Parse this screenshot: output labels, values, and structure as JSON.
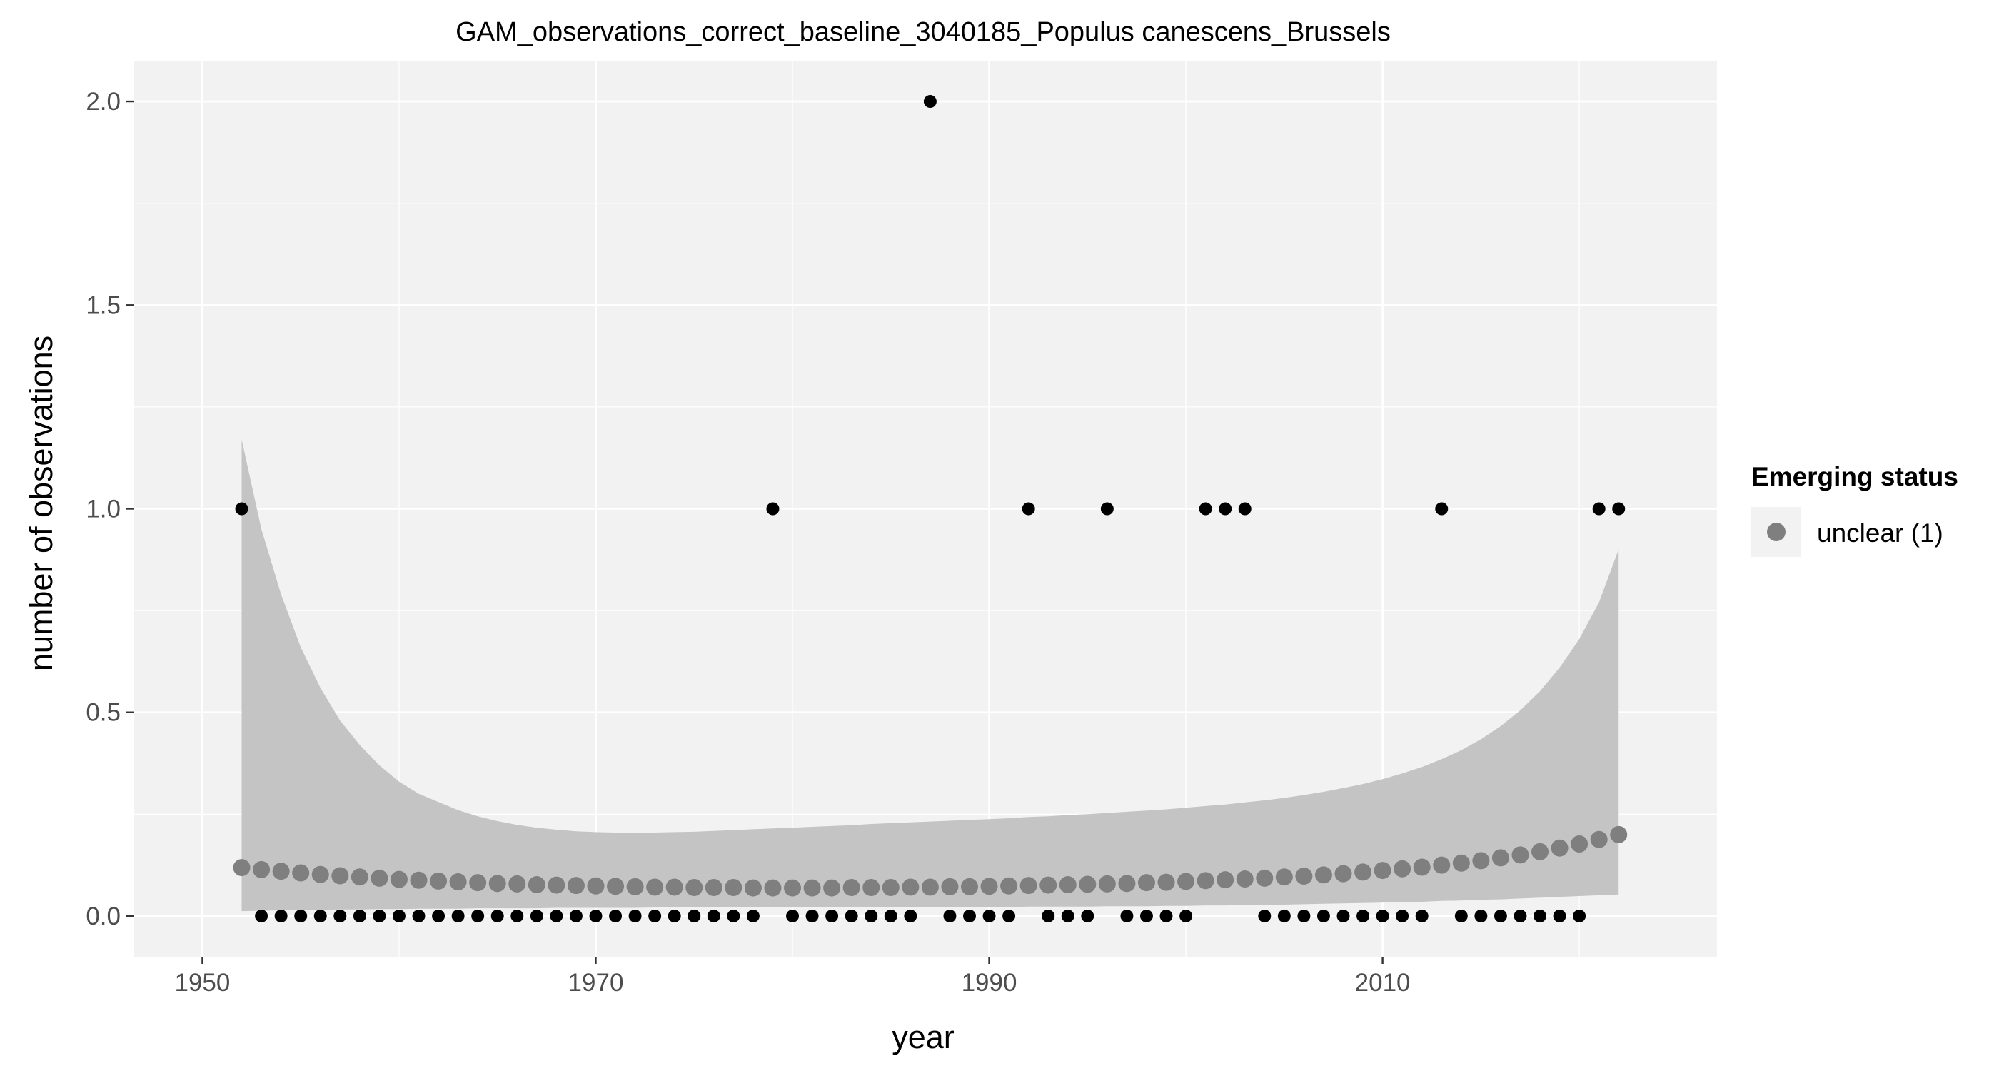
{
  "chart_data": {
    "type": "scatter",
    "title": "GAM_observations_correct_baseline_3040185_Populus canescens_Brussels",
    "xlabel": "year",
    "ylabel": "number of observations",
    "xlim": [
      1946.5,
      2027
    ],
    "ylim": [
      -0.1,
      2.1
    ],
    "x_ticks": [
      1950,
      1970,
      1990,
      2010
    ],
    "x_tick_labels": [
      "1950",
      "1970",
      "1990",
      "2010"
    ],
    "y_ticks": [
      0,
      0.5,
      1,
      1.5,
      2
    ],
    "y_tick_labels": [
      "0.0",
      "0.5",
      "1.0",
      "1.5",
      "2.0"
    ],
    "grid": true,
    "legend": {
      "title": "Emerging status",
      "placement": "right",
      "items": [
        {
          "label": "unclear (1)",
          "color": "#7f7f7f"
        }
      ]
    },
    "colors": {
      "panel": "#f2f2f2",
      "grid_major": "#ffffff",
      "grid_minor": "#ffffff",
      "ribbon": "#c4c4c4",
      "fitted": "#7f7f7f",
      "observed": "#000000"
    },
    "series": [
      {
        "kind": "observed",
        "x": [
          1952,
          1953,
          1954,
          1955,
          1956,
          1957,
          1958,
          1959,
          1960,
          1961,
          1962,
          1963,
          1964,
          1965,
          1966,
          1967,
          1968,
          1969,
          1970,
          1971,
          1972,
          1973,
          1974,
          1975,
          1976,
          1977,
          1978,
          1979,
          1980,
          1981,
          1982,
          1983,
          1984,
          1985,
          1986,
          1987,
          1988,
          1989,
          1990,
          1991,
          1992,
          1993,
          1994,
          1995,
          1996,
          1997,
          1998,
          1999,
          2000,
          2001,
          2002,
          2003,
          2004,
          2005,
          2006,
          2007,
          2008,
          2009,
          2010,
          2011,
          2012,
          2013,
          2014,
          2015,
          2016,
          2017,
          2018,
          2019,
          2020,
          2021,
          2022
        ],
        "y": [
          1,
          0,
          0,
          0,
          0,
          0,
          0,
          0,
          0,
          0,
          0,
          0,
          0,
          0,
          0,
          0,
          0,
          0,
          0,
          0,
          0,
          0,
          0,
          0,
          0,
          0,
          0,
          1,
          0,
          0,
          0,
          0,
          0,
          0,
          0,
          2,
          0,
          0,
          0,
          0,
          1,
          0,
          0,
          0,
          1,
          0,
          0,
          0,
          0,
          1,
          1,
          1,
          0,
          0,
          0,
          0,
          0,
          0,
          0,
          0,
          0,
          1,
          0,
          0,
          0,
          0,
          0,
          0,
          0,
          1,
          1
        ]
      },
      {
        "kind": "fitted",
        "name": "unclear (1)",
        "x": [
          1952,
          1953,
          1954,
          1955,
          1956,
          1957,
          1958,
          1959,
          1960,
          1961,
          1962,
          1963,
          1964,
          1965,
          1966,
          1967,
          1968,
          1969,
          1970,
          1971,
          1972,
          1973,
          1974,
          1975,
          1976,
          1977,
          1978,
          1979,
          1980,
          1981,
          1982,
          1983,
          1984,
          1985,
          1986,
          1987,
          1988,
          1989,
          1990,
          1991,
          1992,
          1993,
          1994,
          1995,
          1996,
          1997,
          1998,
          1999,
          2000,
          2001,
          2002,
          2003,
          2004,
          2005,
          2006,
          2007,
          2008,
          2009,
          2010,
          2011,
          2012,
          2013,
          2014,
          2015,
          2016,
          2017,
          2018,
          2019,
          2020,
          2021,
          2022
        ],
        "y": [
          0.119,
          0.114,
          0.11,
          0.106,
          0.102,
          0.099,
          0.096,
          0.093,
          0.09,
          0.088,
          0.086,
          0.084,
          0.082,
          0.08,
          0.079,
          0.077,
          0.076,
          0.075,
          0.074,
          0.073,
          0.072,
          0.071,
          0.071,
          0.07,
          0.07,
          0.07,
          0.069,
          0.069,
          0.069,
          0.069,
          0.069,
          0.07,
          0.07,
          0.07,
          0.071,
          0.071,
          0.072,
          0.072,
          0.073,
          0.074,
          0.075,
          0.076,
          0.077,
          0.078,
          0.079,
          0.08,
          0.082,
          0.083,
          0.085,
          0.087,
          0.089,
          0.091,
          0.093,
          0.096,
          0.098,
          0.101,
          0.104,
          0.108,
          0.112,
          0.116,
          0.12,
          0.125,
          0.13,
          0.136,
          0.143,
          0.15,
          0.158,
          0.167,
          0.177,
          0.188,
          0.2
        ],
        "upper": [
          1.17,
          0.95,
          0.79,
          0.66,
          0.56,
          0.48,
          0.42,
          0.37,
          0.33,
          0.3,
          0.28,
          0.26,
          0.245,
          0.233,
          0.224,
          0.217,
          0.212,
          0.208,
          0.206,
          0.205,
          0.205,
          0.205,
          0.206,
          0.207,
          0.209,
          0.211,
          0.213,
          0.215,
          0.217,
          0.219,
          0.221,
          0.223,
          0.226,
          0.228,
          0.23,
          0.232,
          0.234,
          0.236,
          0.238,
          0.24,
          0.243,
          0.245,
          0.248,
          0.25,
          0.253,
          0.256,
          0.259,
          0.262,
          0.266,
          0.27,
          0.274,
          0.279,
          0.284,
          0.29,
          0.297,
          0.305,
          0.314,
          0.324,
          0.336,
          0.35,
          0.366,
          0.385,
          0.407,
          0.434,
          0.466,
          0.505,
          0.552,
          0.61,
          0.68,
          0.77,
          0.9
        ],
        "lower": [
          0.012,
          0.013,
          0.014,
          0.014,
          0.015,
          0.016,
          0.016,
          0.017,
          0.017,
          0.018,
          0.018,
          0.018,
          0.019,
          0.019,
          0.019,
          0.019,
          0.02,
          0.02,
          0.02,
          0.02,
          0.02,
          0.021,
          0.021,
          0.021,
          0.021,
          0.021,
          0.021,
          0.021,
          0.021,
          0.021,
          0.021,
          0.021,
          0.021,
          0.022,
          0.022,
          0.022,
          0.022,
          0.022,
          0.022,
          0.022,
          0.023,
          0.023,
          0.023,
          0.023,
          0.024,
          0.024,
          0.024,
          0.025,
          0.025,
          0.026,
          0.026,
          0.027,
          0.027,
          0.028,
          0.029,
          0.03,
          0.031,
          0.032,
          0.033,
          0.034,
          0.035,
          0.037,
          0.038,
          0.04,
          0.041,
          0.043,
          0.045,
          0.047,
          0.049,
          0.051,
          0.053
        ]
      }
    ]
  }
}
